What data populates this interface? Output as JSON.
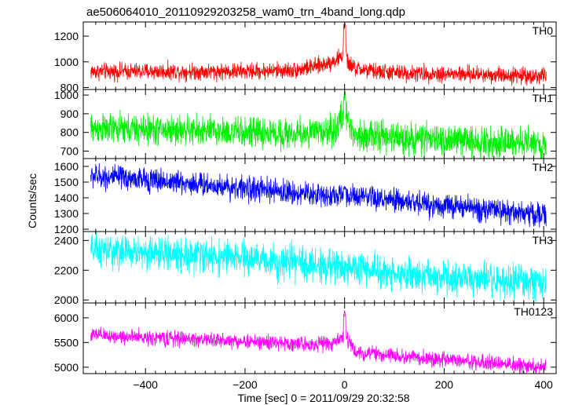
{
  "title": "ae506064010_20110929203258_wam0_trn_4band_long.qdp",
  "ylabel": "Counts/sec",
  "xlabel": "Time [sec] 0 = 2011/09/29 20:32:58",
  "chart_data": {
    "type": "line",
    "title": "ae506064010_20110929203258_wam0_trn_4band_long.qdp",
    "xlabel": "Time [sec] 0 = 2011/09/29 20:32:58",
    "ylabel": "Counts/sec",
    "xlim": [
      -525,
      425
    ],
    "x_ticks": [
      -400,
      -200,
      0,
      200,
      400
    ],
    "grid": false,
    "panels": [
      {
        "name": "TH0",
        "color": "#ff0000",
        "ylim": [
          785,
          1310
        ],
        "y_ticks": [
          800,
          1000,
          1200
        ],
        "x": [
          -510,
          -400,
          -300,
          -200,
          -100,
          -50,
          -20,
          -5,
          0,
          5,
          20,
          50,
          100,
          200,
          300,
          400
        ],
        "baseline": [
          925,
          925,
          925,
          925,
          935,
          970,
          1010,
          1040,
          1160,
          1000,
          950,
          930,
          915,
          905,
          900,
          890
        ],
        "noise": 32,
        "spike": {
          "x": 0,
          "peak": 1310
        }
      },
      {
        "name": "TH1",
        "color": "#00ee00",
        "ylim": [
          660,
          1030
        ],
        "y_ticks": [
          700,
          800,
          900,
          1000
        ],
        "x": [
          -510,
          -400,
          -300,
          -200,
          -100,
          -20,
          0,
          20,
          100,
          200,
          300,
          400
        ],
        "baseline": [
          820,
          815,
          810,
          800,
          790,
          810,
          900,
          790,
          770,
          760,
          750,
          740
        ],
        "noise": 40,
        "spike": {
          "x": 0,
          "peak": 1025
        }
      },
      {
        "name": "TH2",
        "color": "#0000ff",
        "ylim": [
          1185,
          1650
        ],
        "y_ticks": [
          1200,
          1300,
          1400,
          1500,
          1600
        ],
        "x": [
          -510,
          -400,
          -300,
          -200,
          -100,
          0,
          100,
          200,
          300,
          400
        ],
        "baseline": [
          1540,
          1515,
          1490,
          1460,
          1430,
          1410,
          1380,
          1350,
          1320,
          1290
        ],
        "noise": 38,
        "spike": {
          "x": 0,
          "peak": 1480
        }
      },
      {
        "name": "TH3",
        "color": "#00ffff",
        "ylim": [
          1980,
          2460
        ],
        "y_ticks": [
          2000,
          2200,
          2400
        ],
        "x": [
          -510,
          -400,
          -300,
          -200,
          -100,
          0,
          100,
          200,
          300,
          400
        ],
        "baseline": [
          2330,
          2320,
          2300,
          2280,
          2250,
          2220,
          2180,
          2150,
          2130,
          2110
        ],
        "noise": 55,
        "spike": null
      },
      {
        "name": "TH0123",
        "color": "#ff00ff",
        "ylim": [
          4870,
          6300
        ],
        "y_ticks": [
          5000,
          5500,
          6000
        ],
        "x": [
          -510,
          -400,
          -300,
          -200,
          -100,
          -20,
          0,
          20,
          100,
          200,
          300,
          400
        ],
        "baseline": [
          5650,
          5600,
          5570,
          5520,
          5470,
          5480,
          5700,
          5300,
          5230,
          5150,
          5080,
          5000
        ],
        "noise": 75,
        "spike": {
          "x": 0,
          "peak": 6180
        }
      }
    ]
  }
}
